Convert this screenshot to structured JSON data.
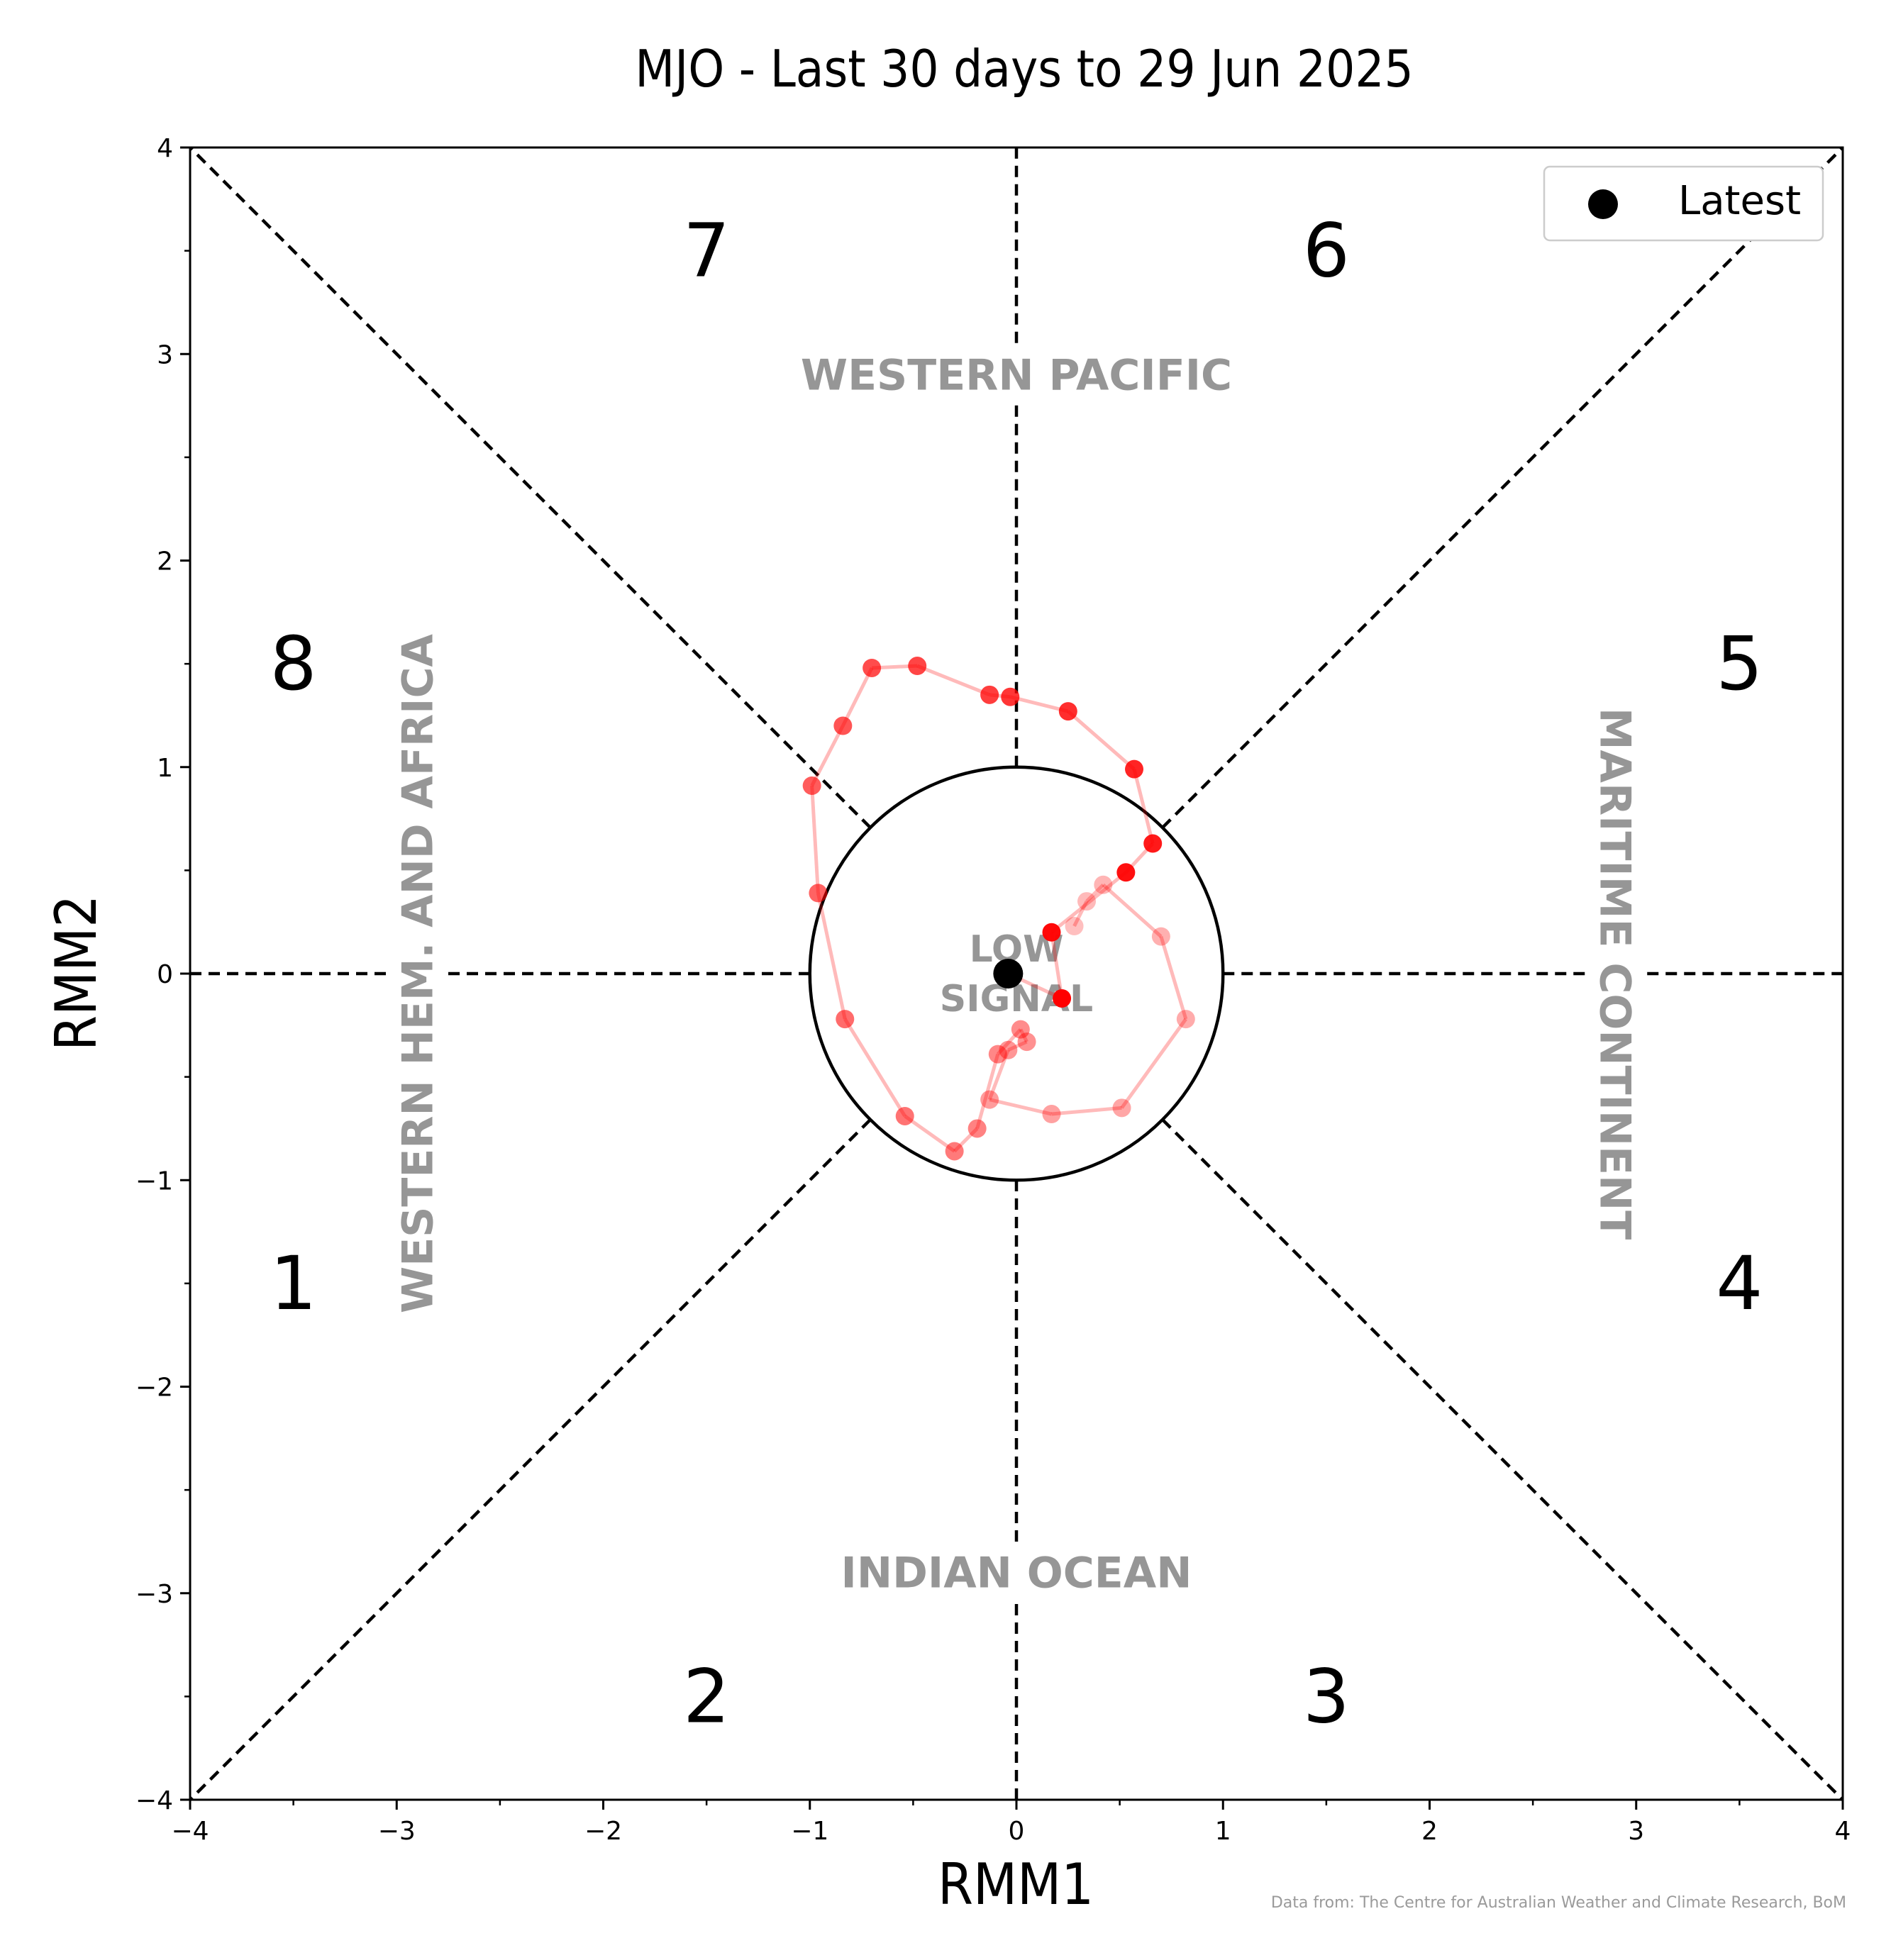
{
  "chart_data": {
    "type": "scatter",
    "title": "MJO - Last 30 days to 29 Jun 2025",
    "xlabel": "RMM1",
    "ylabel": "RMM2",
    "xlim": [
      -4,
      4
    ],
    "ylim": [
      -4,
      4
    ],
    "xticks": [
      "−4",
      "−3",
      "−2",
      "−1",
      "0",
      "1",
      "2",
      "3",
      "4"
    ],
    "yticks": [
      "−4",
      "−3",
      "−2",
      "−1",
      "0",
      "1",
      "2",
      "3",
      "4"
    ],
    "grid": false,
    "legend": {
      "position": "top-right",
      "entries": [
        "Latest"
      ]
    },
    "phases": [
      {
        "label": "1",
        "x": -3.5,
        "y": -1.5
      },
      {
        "label": "2",
        "x": -1.5,
        "y": -3.5
      },
      {
        "label": "3",
        "x": 1.5,
        "y": -3.5
      },
      {
        "label": "4",
        "x": 3.5,
        "y": -1.5
      },
      {
        "label": "5",
        "x": 3.5,
        "y": 1.5
      },
      {
        "label": "6",
        "x": 1.5,
        "y": 3.5
      },
      {
        "label": "7",
        "x": -1.5,
        "y": 3.5
      },
      {
        "label": "8",
        "x": -3.5,
        "y": 1.5
      }
    ],
    "regions": {
      "top": "WESTERN PACIFIC",
      "bottom": "INDIAN OCEAN",
      "left": "WESTERN HEM. AND AFRICA",
      "right": "MARITIME CONTINENT"
    },
    "low_signal": [
      "LOW",
      "SIGNAL"
    ],
    "low_signal_radius": 1,
    "series": [
      {
        "color": "#ff0000",
        "points": [
          {
            "x": 0.28,
            "y": 0.23,
            "alpha": 0.25
          },
          {
            "x": 0.34,
            "y": 0.35,
            "alpha": 0.27
          },
          {
            "x": 0.42,
            "y": 0.43,
            "alpha": 0.29
          },
          {
            "x": 0.7,
            "y": 0.18,
            "alpha": 0.31
          },
          {
            "x": 0.82,
            "y": -0.22,
            "alpha": 0.33
          },
          {
            "x": 0.51,
            "y": -0.65,
            "alpha": 0.35
          },
          {
            "x": 0.17,
            "y": -0.68,
            "alpha": 0.37
          },
          {
            "x": -0.13,
            "y": -0.61,
            "alpha": 0.39
          },
          {
            "x": -0.04,
            "y": -0.37,
            "alpha": 0.41
          },
          {
            "x": 0.05,
            "y": -0.33,
            "alpha": 0.43
          },
          {
            "x": 0.02,
            "y": -0.27,
            "alpha": 0.45
          },
          {
            "x": -0.09,
            "y": -0.39,
            "alpha": 0.47
          },
          {
            "x": -0.19,
            "y": -0.75,
            "alpha": 0.49
          },
          {
            "x": -0.3,
            "y": -0.86,
            "alpha": 0.52
          },
          {
            "x": -0.54,
            "y": -0.69,
            "alpha": 0.55
          },
          {
            "x": -0.83,
            "y": -0.22,
            "alpha": 0.58
          },
          {
            "x": -0.96,
            "y": 0.39,
            "alpha": 0.61
          },
          {
            "x": -0.99,
            "y": 0.91,
            "alpha": 0.64
          },
          {
            "x": -0.84,
            "y": 1.2,
            "alpha": 0.67
          },
          {
            "x": -0.7,
            "y": 1.48,
            "alpha": 0.7
          },
          {
            "x": -0.48,
            "y": 1.49,
            "alpha": 0.73
          },
          {
            "x": -0.13,
            "y": 1.35,
            "alpha": 0.76
          },
          {
            "x": -0.03,
            "y": 1.34,
            "alpha": 0.79
          },
          {
            "x": 0.25,
            "y": 1.27,
            "alpha": 0.82
          },
          {
            "x": 0.57,
            "y": 0.99,
            "alpha": 0.86
          },
          {
            "x": 0.66,
            "y": 0.63,
            "alpha": 0.9
          },
          {
            "x": 0.53,
            "y": 0.49,
            "alpha": 0.94
          },
          {
            "x": 0.17,
            "y": 0.2,
            "alpha": 0.97
          },
          {
            "x": 0.22,
            "y": -0.12,
            "alpha": 1.0
          }
        ]
      }
    ],
    "latest": {
      "x": -0.04,
      "y": 0.0,
      "color": "#000000"
    }
  },
  "credit": "Data from: The Centre for Australian Weather and Climate Research, BoM"
}
